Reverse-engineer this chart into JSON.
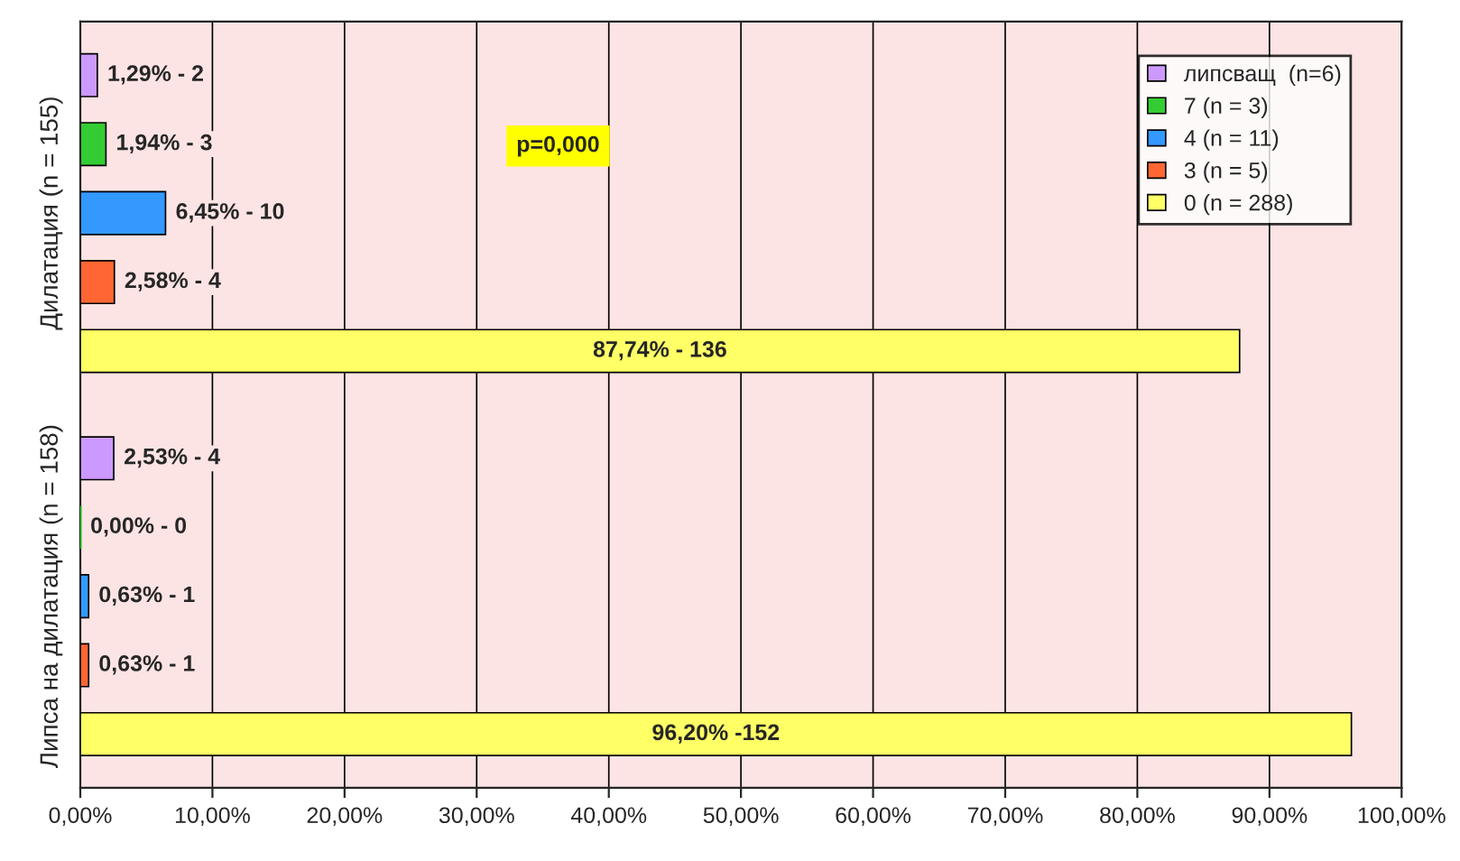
{
  "chart_data": {
    "type": "bar",
    "orientation": "horizontal",
    "categories": [
      "Дилатация (n = 155)",
      "Липса на дилатация (n = 158)"
    ],
    "series": [
      {
        "name": "липсващ  (n=6)",
        "color": "#cc99ff",
        "values": [
          1.29,
          2.53
        ],
        "value_labels": [
          "1,29% - 2",
          "2,53% - 4"
        ]
      },
      {
        "name": "7 (n = 3)",
        "color": "#33cc33",
        "values": [
          1.94,
          0.0
        ],
        "value_labels": [
          "1,94% - 3",
          "0,00% - 0"
        ]
      },
      {
        "name": "4 (n = 11)",
        "color": "#3399ff",
        "values": [
          6.45,
          0.63
        ],
        "value_labels": [
          "6,45% - 10",
          "0,63% - 1"
        ]
      },
      {
        "name": "3 (n = 5)",
        "color": "#ff6633",
        "values": [
          2.58,
          0.63
        ],
        "value_labels": [
          "2,58% - 4",
          "0,63% - 1"
        ]
      },
      {
        "name": "0 (n = 288)",
        "color": "#ffff66",
        "values": [
          87.74,
          96.2
        ],
        "value_labels": [
          "87,74% - 136",
          "96,20% -152"
        ]
      }
    ],
    "xlim": [
      0,
      100
    ],
    "xticks": [
      {
        "value": 0,
        "label": "0,00%"
      },
      {
        "value": 10,
        "label": "10,00%"
      },
      {
        "value": 20,
        "label": "20,00%"
      },
      {
        "value": 30,
        "label": "30,00%"
      },
      {
        "value": 40,
        "label": "40,00%"
      },
      {
        "value": 50,
        "label": "50,00%"
      },
      {
        "value": 60,
        "label": "60,00%"
      },
      {
        "value": 70,
        "label": "70,00%"
      },
      {
        "value": 80,
        "label": "80,00%"
      },
      {
        "value": 90,
        "label": "90,00%"
      },
      {
        "value": 100,
        "label": "100,00%"
      }
    ],
    "annotations": [
      "p=0,000"
    ],
    "grid": "x",
    "legend": "top right"
  }
}
